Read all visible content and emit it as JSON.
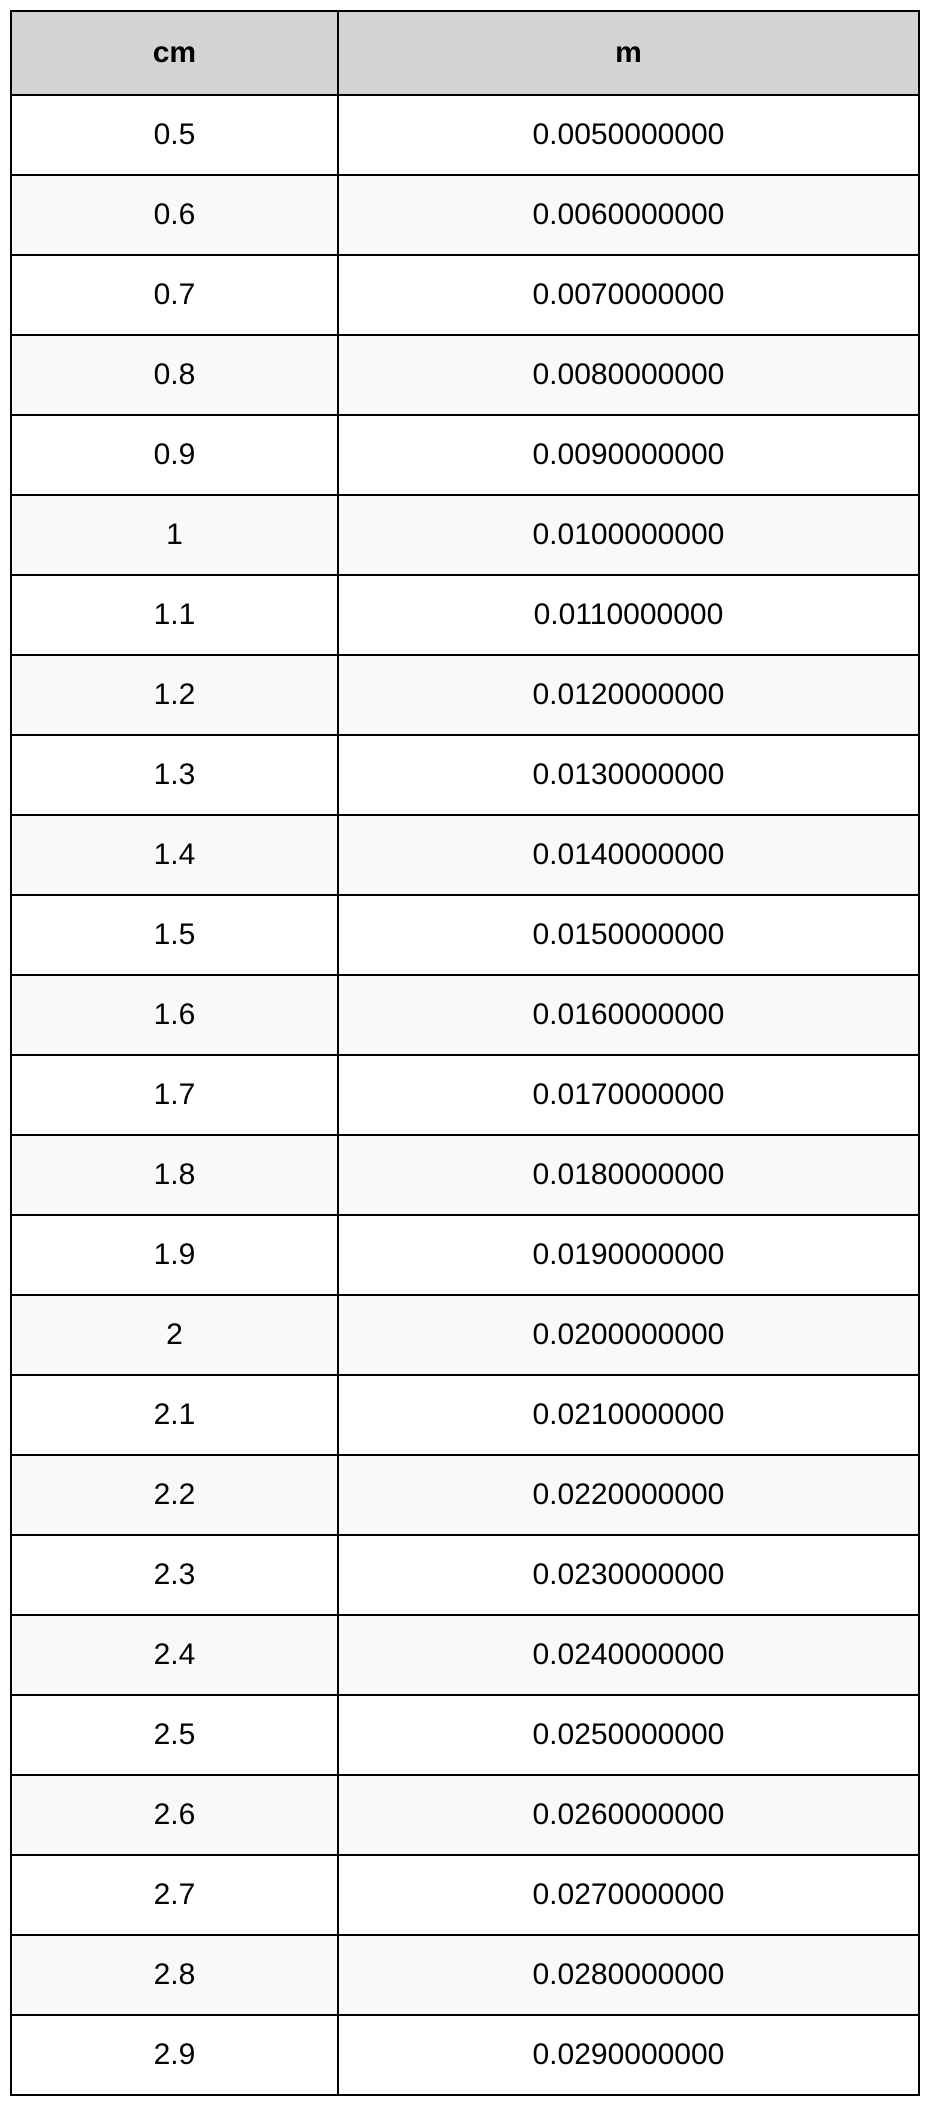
{
  "table": {
    "type": "table",
    "header_bg_color": "#d3d3d3",
    "row_alt_bg_color": "#f9f9f9",
    "row_bg_color": "#ffffff",
    "border_color": "#000000",
    "font_family": "Arial",
    "header_fontsize": 30,
    "cell_fontsize": 30,
    "header_font_weight": "bold",
    "columns": [
      "cm",
      "m"
    ],
    "column_widths": [
      "36%",
      "64%"
    ],
    "column_alignments": [
      "center",
      "center"
    ],
    "rows": [
      [
        "0.5",
        "0.0050000000"
      ],
      [
        "0.6",
        "0.0060000000"
      ],
      [
        "0.7",
        "0.0070000000"
      ],
      [
        "0.8",
        "0.0080000000"
      ],
      [
        "0.9",
        "0.0090000000"
      ],
      [
        "1",
        "0.0100000000"
      ],
      [
        "1.1",
        "0.0110000000"
      ],
      [
        "1.2",
        "0.0120000000"
      ],
      [
        "1.3",
        "0.0130000000"
      ],
      [
        "1.4",
        "0.0140000000"
      ],
      [
        "1.5",
        "0.0150000000"
      ],
      [
        "1.6",
        "0.0160000000"
      ],
      [
        "1.7",
        "0.0170000000"
      ],
      [
        "1.8",
        "0.0180000000"
      ],
      [
        "1.9",
        "0.0190000000"
      ],
      [
        "2",
        "0.0200000000"
      ],
      [
        "2.1",
        "0.0210000000"
      ],
      [
        "2.2",
        "0.0220000000"
      ],
      [
        "2.3",
        "0.0230000000"
      ],
      [
        "2.4",
        "0.0240000000"
      ],
      [
        "2.5",
        "0.0250000000"
      ],
      [
        "2.6",
        "0.0260000000"
      ],
      [
        "2.7",
        "0.0270000000"
      ],
      [
        "2.8",
        "0.0280000000"
      ],
      [
        "2.9",
        "0.0290000000"
      ]
    ]
  }
}
